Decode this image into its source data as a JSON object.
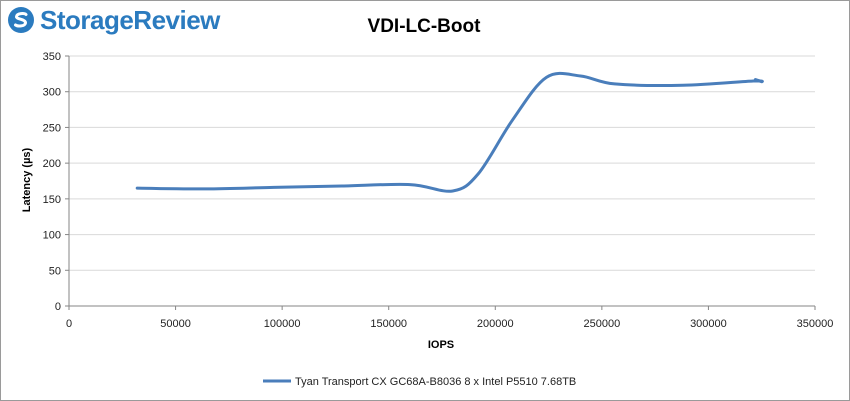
{
  "branding": {
    "logo_text": "StorageReview",
    "logo_color": "#2b7bbf",
    "logo_icon": "storagereview-logo-icon"
  },
  "chart_data": {
    "type": "line",
    "title": "VDI-LC-Boot",
    "xlabel": "IOPS",
    "ylabel": "Latency (µs)",
    "xlim": [
      0,
      350000
    ],
    "ylim": [
      0,
      350
    ],
    "x_ticks": [
      "0",
      "50000",
      "100000",
      "150000",
      "200000",
      "250000",
      "300000",
      "350000"
    ],
    "y_ticks": [
      "0",
      "50",
      "100",
      "150",
      "200",
      "250",
      "300",
      "350"
    ],
    "grid": "horizontal",
    "legend_position": "bottom",
    "series": [
      {
        "name": "Tyan Transport CX GC68A-B8036 8 x Intel P5510 7.68TB",
        "color": "#4a7ebb",
        "x": [
          32000,
          64000,
          96000,
          128000,
          160000,
          180000,
          192000,
          208000,
          224000,
          240000,
          256000,
          288000,
          321000,
          325000,
          322000,
          325000
        ],
        "y": [
          165,
          164,
          166,
          168,
          170,
          161,
          185,
          260,
          320,
          322,
          311,
          309,
          315,
          314,
          317,
          314
        ]
      }
    ]
  }
}
